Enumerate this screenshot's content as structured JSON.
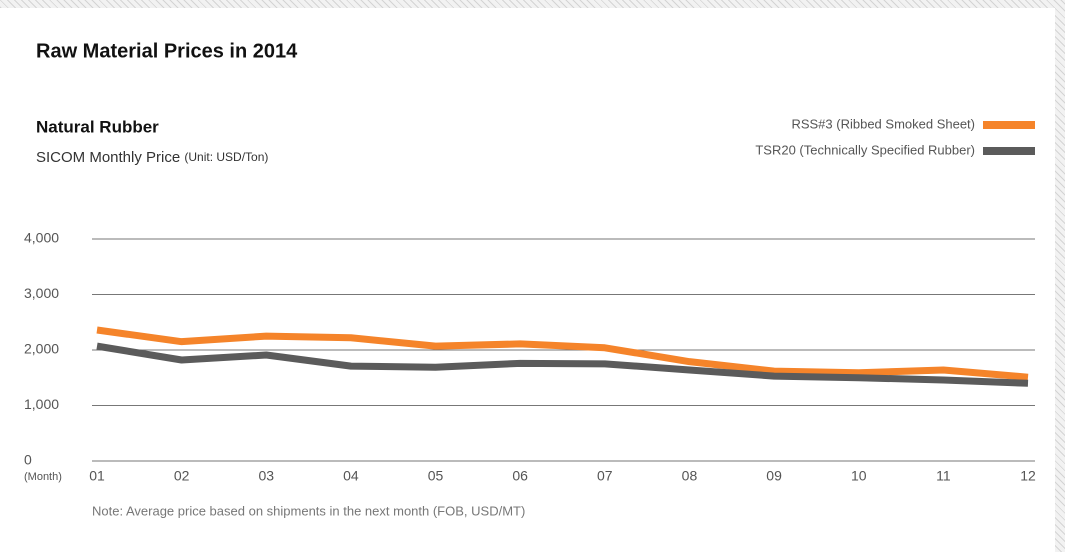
{
  "chart_data": {
    "type": "line",
    "title": "Raw Material Prices in 2014",
    "subtitle": "Natural Rubber",
    "description": "SICOM Monthly Price",
    "unit": "(Unit: USD/Ton)",
    "x_unit": "(Month)",
    "note": "Note: Average price based on shipments in the next month (FOB, USD/MT)",
    "categories": [
      "01",
      "02",
      "03",
      "04",
      "05",
      "06",
      "07",
      "08",
      "09",
      "10",
      "11",
      "12"
    ],
    "series": [
      {
        "name": "RSS#3 (Ribbed Smoked Sheet)",
        "color": "#f5842a",
        "values": [
          2360,
          2150,
          2250,
          2220,
          2070,
          2110,
          2040,
          1790,
          1620,
          1590,
          1640,
          1510
        ]
      },
      {
        "name": "TSR20 (Technically Specified Rubber)",
        "color": "#5b5b5b",
        "values": [
          2070,
          1820,
          1910,
          1710,
          1690,
          1760,
          1750,
          1640,
          1530,
          1500,
          1460,
          1400
        ]
      }
    ],
    "ylim": [
      0,
      4000
    ],
    "yticks": [
      0,
      {
        "value": 1000,
        "label": "1,000"
      },
      {
        "value": 2000,
        "label": "2,000"
      },
      {
        "value": 3000,
        "label": "3,000"
      },
      {
        "value": 4000,
        "label": "4,000"
      }
    ],
    "grid": true,
    "legend": "top-right"
  }
}
